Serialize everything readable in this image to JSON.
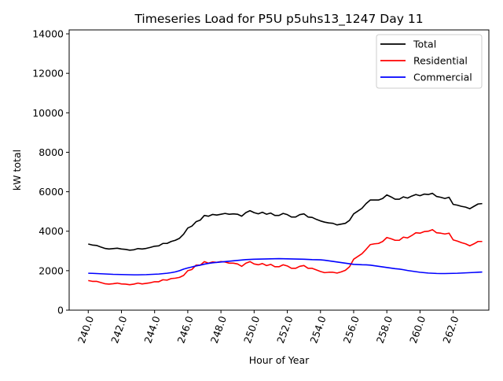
{
  "chart_data": {
    "type": "line",
    "title": "Timeseries Load for P5U p5uhs13_1247  Day 11",
    "xlabel": "Hour of Year",
    "ylabel": "kW total",
    "xlim": [
      238.85,
      264.15
    ],
    "ylim": [
      0,
      14200
    ],
    "x_ticks": [
      240.0,
      242.0,
      244.0,
      246.0,
      248.0,
      250.0,
      252.0,
      254.0,
      256.0,
      258.0,
      260.0,
      262.0
    ],
    "x_tick_labels": [
      "240.0",
      "242.0",
      "244.0",
      "246.0",
      "248.0",
      "250.0",
      "252.0",
      "254.0",
      "256.0",
      "258.0",
      "260.0",
      "262.0"
    ],
    "y_ticks": [
      0,
      2000,
      4000,
      6000,
      8000,
      10000,
      12000,
      14000
    ],
    "y_tick_labels": [
      "0",
      "2000",
      "4000",
      "6000",
      "8000",
      "10000",
      "12000",
      "14000"
    ],
    "legend_position": "top-right",
    "grid": false,
    "x_start": 240.0,
    "x_step": 0.25,
    "series": [
      {
        "name": "Total",
        "color": "#000000",
        "values": [
          3350,
          3300,
          3280,
          3200,
          3130,
          3100,
          3120,
          3140,
          3100,
          3080,
          3040,
          3060,
          3120,
          3100,
          3130,
          3180,
          3240,
          3260,
          3380,
          3380,
          3480,
          3540,
          3640,
          3850,
          4160,
          4260,
          4480,
          4560,
          4800,
          4760,
          4850,
          4820,
          4860,
          4900,
          4860,
          4880,
          4860,
          4760,
          4940,
          5040,
          4940,
          4880,
          4960,
          4860,
          4920,
          4800,
          4800,
          4900,
          4840,
          4720,
          4720,
          4840,
          4880,
          4720,
          4700,
          4600,
          4520,
          4460,
          4420,
          4400,
          4320,
          4360,
          4400,
          4550,
          4880,
          5020,
          5160,
          5400,
          5580,
          5580,
          5580,
          5660,
          5840,
          5740,
          5620,
          5620,
          5740,
          5680,
          5780,
          5860,
          5800,
          5880,
          5860,
          5920,
          5760,
          5720,
          5660,
          5720,
          5360,
          5320,
          5260,
          5220,
          5140,
          5260,
          5380,
          5400
        ]
      },
      {
        "name": "Residential",
        "color": "#ff0000",
        "values": [
          1500,
          1460,
          1460,
          1400,
          1340,
          1320,
          1340,
          1370,
          1330,
          1320,
          1290,
          1320,
          1370,
          1330,
          1360,
          1390,
          1440,
          1440,
          1540,
          1520,
          1600,
          1620,
          1660,
          1760,
          2000,
          2060,
          2280,
          2280,
          2460,
          2380,
          2440,
          2420,
          2460,
          2440,
          2380,
          2380,
          2340,
          2220,
          2380,
          2460,
          2340,
          2300,
          2360,
          2260,
          2320,
          2200,
          2200,
          2300,
          2240,
          2120,
          2120,
          2220,
          2260,
          2120,
          2120,
          2040,
          1960,
          1900,
          1920,
          1920,
          1880,
          1940,
          2020,
          2200,
          2580,
          2720,
          2860,
          3080,
          3320,
          3360,
          3380,
          3480,
          3680,
          3620,
          3540,
          3540,
          3700,
          3660,
          3780,
          3920,
          3900,
          3980,
          4000,
          4080,
          3920,
          3900,
          3860,
          3900,
          3560,
          3500,
          3420,
          3360,
          3260,
          3360,
          3480,
          3480
        ]
      },
      {
        "name": "Commercial",
        "color": "#0000ff",
        "values": [
          1870,
          1865,
          1855,
          1845,
          1835,
          1825,
          1815,
          1810,
          1805,
          1800,
          1795,
          1790,
          1790,
          1795,
          1800,
          1810,
          1820,
          1830,
          1850,
          1870,
          1900,
          1940,
          2000,
          2080,
          2140,
          2190,
          2240,
          2280,
          2330,
          2370,
          2400,
          2420,
          2440,
          2460,
          2480,
          2500,
          2520,
          2540,
          2560,
          2570,
          2580,
          2585,
          2590,
          2595,
          2600,
          2605,
          2610,
          2605,
          2600,
          2595,
          2590,
          2585,
          2580,
          2570,
          2560,
          2555,
          2550,
          2530,
          2500,
          2470,
          2440,
          2410,
          2380,
          2350,
          2320,
          2310,
          2300,
          2295,
          2280,
          2250,
          2220,
          2190,
          2160,
          2130,
          2100,
          2080,
          2050,
          2010,
          1980,
          1950,
          1920,
          1900,
          1880,
          1870,
          1860,
          1855,
          1855,
          1860,
          1865,
          1870,
          1880,
          1890,
          1900,
          1910,
          1920,
          1930
        ]
      }
    ]
  }
}
